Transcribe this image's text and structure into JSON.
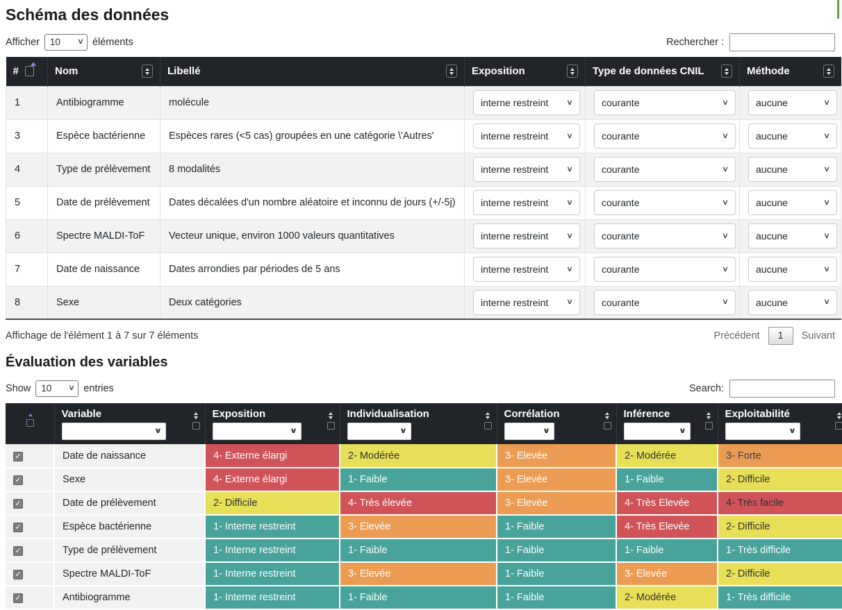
{
  "colors": {
    "header_bg": "#212529",
    "stripe": "#f2f2f2",
    "red": "#d05358",
    "orange": "#ec9c52",
    "yellow": "#e8df58",
    "teal": "#48a39a",
    "sort_accent": "#8285d8",
    "scroll_mark_green": "#57a64a"
  },
  "schema_table": {
    "title": "Schéma des données",
    "show_label": "Afficher",
    "show_value": "10",
    "show_suffix": "éléments",
    "search_label": "Rechercher :",
    "search_value": "",
    "columns": {
      "num": "#",
      "nom": "Nom",
      "libelle": "Libellé",
      "exposition": "Exposition",
      "cnil": "Type de données CNIL",
      "methode": "Méthode"
    },
    "rows": [
      {
        "num": "1",
        "nom": "Antibiogramme",
        "libelle": "molécule",
        "exposition": "interne restreint",
        "cnil": "courante",
        "methode": "aucune"
      },
      {
        "num": "3",
        "nom": "Espèce bactérienne",
        "libelle": "Espèces rares (<5 cas) groupées en une catégorie \\'Autres'",
        "exposition": "interne restreint",
        "cnil": "courante",
        "methode": "aucune"
      },
      {
        "num": "4",
        "nom": "Type de prélèvement",
        "libelle": "8 modalités",
        "exposition": "interne restreint",
        "cnil": "courante",
        "methode": "aucune"
      },
      {
        "num": "5",
        "nom": "Date de prélèvement",
        "libelle": "Dates décalées d'un nombre aléatoire et inconnu de jours (+/-5j)",
        "exposition": "interne restreint",
        "cnil": "courante",
        "methode": "aucune"
      },
      {
        "num": "6",
        "nom": "Spectre MALDI-ToF",
        "libelle": "Vecteur unique, environ 1000 valeurs quantitatives",
        "exposition": "interne restreint",
        "cnil": "courante",
        "methode": "aucune"
      },
      {
        "num": "7",
        "nom": "Date de naissance",
        "libelle": "Dates arrondies par périodes de 5 ans",
        "exposition": "interne restreint",
        "cnil": "courante",
        "methode": "aucune"
      },
      {
        "num": "8",
        "nom": "Sexe",
        "libelle": "Deux catégories",
        "exposition": "interne restreint",
        "cnil": "courante",
        "methode": "aucune"
      }
    ],
    "info": "Affichage de l'élément 1 à 7 sur 7 éléments",
    "pagination": {
      "previous": "Précédent",
      "current": "1",
      "next": "Suivant"
    }
  },
  "eval_table": {
    "title": "Évaluation des variables",
    "show_label": "Show",
    "show_value": "10",
    "show_suffix": "entries",
    "search_label": "Search:",
    "search_value": "",
    "columns": [
      "Variable",
      "Exposition",
      "Individualisation",
      "Corrélation",
      "Inférence",
      "Exploitabilité"
    ],
    "rows": [
      {
        "checked": true,
        "variable": "Date de naissance",
        "cells": [
          {
            "label": "4- Externe élargi",
            "style": "red-light"
          },
          {
            "label": "2- Modérée",
            "style": "yellow-dark"
          },
          {
            "label": "3- Elevée",
            "style": "orange-light"
          },
          {
            "label": "2- Modérée",
            "style": "yellow-dark"
          },
          {
            "label": "3- Forte",
            "style": "orange-dark"
          }
        ]
      },
      {
        "checked": true,
        "variable": "Sexe",
        "cells": [
          {
            "label": "4- Externe élargi",
            "style": "red-light"
          },
          {
            "label": "1- Faible",
            "style": "teal-light"
          },
          {
            "label": "3- Elevée",
            "style": "orange-light"
          },
          {
            "label": "1- Faible",
            "style": "teal-light"
          },
          {
            "label": "2- Difficile",
            "style": "yellow-dark"
          }
        ]
      },
      {
        "checked": true,
        "variable": "Date de prélèvement",
        "cells": [
          {
            "label": "2- Difficile",
            "style": "yellow-dark"
          },
          {
            "label": "4- Très élevée",
            "style": "red-light"
          },
          {
            "label": "3- Elevée",
            "style": "orange-light"
          },
          {
            "label": "4- Très Elevée",
            "style": "red-light"
          },
          {
            "label": "4- Très facile",
            "style": "red-dark"
          }
        ]
      },
      {
        "checked": true,
        "variable": "Espèce bactérienne",
        "cells": [
          {
            "label": "1- Interne restreint",
            "style": "teal-light"
          },
          {
            "label": "3- Elevée",
            "style": "orange-light"
          },
          {
            "label": "1- Faible",
            "style": "teal-light"
          },
          {
            "label": "4- Très Elevée",
            "style": "red-light"
          },
          {
            "label": "2- Difficile",
            "style": "yellow-dark"
          }
        ]
      },
      {
        "checked": true,
        "variable": "Type de prélèvement",
        "cells": [
          {
            "label": "1- Interne restreint",
            "style": "teal-light"
          },
          {
            "label": "1- Faible",
            "style": "teal-light"
          },
          {
            "label": "1- Faible",
            "style": "teal-light"
          },
          {
            "label": "1- Faible",
            "style": "teal-light"
          },
          {
            "label": "1- Très difficile",
            "style": "teal-light"
          }
        ]
      },
      {
        "checked": true,
        "variable": "Spectre MALDI-ToF",
        "cells": [
          {
            "label": "1- Interne restreint",
            "style": "teal-light"
          },
          {
            "label": "3- Elevée",
            "style": "orange-light"
          },
          {
            "label": "1- Faible",
            "style": "teal-light"
          },
          {
            "label": "3- Elevée",
            "style": "orange-light"
          },
          {
            "label": "2- Difficile",
            "style": "yellow-dark"
          }
        ]
      },
      {
        "checked": true,
        "variable": "Antibiogramme",
        "cells": [
          {
            "label": "1- Interne restreint",
            "style": "teal-light"
          },
          {
            "label": "1- Faible",
            "style": "teal-light"
          },
          {
            "label": "1- Faible",
            "style": "teal-light"
          },
          {
            "label": "2- Modérée",
            "style": "yellow-dark"
          },
          {
            "label": "1- Très difficile",
            "style": "teal-light"
          }
        ]
      }
    ]
  }
}
